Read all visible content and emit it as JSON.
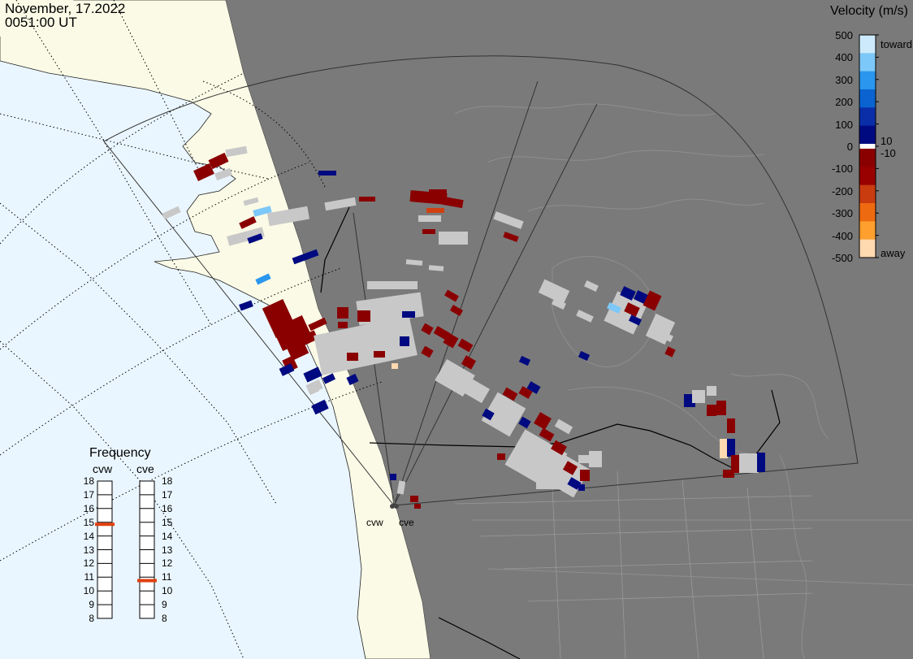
{
  "header": {
    "date": "November, 17.2022",
    "time": "0051:00 UT"
  },
  "velocity_scale": {
    "title": "Velocity (m/s)",
    "ticks": [
      "500",
      "400",
      "300",
      "200",
      "100",
      "0",
      "-100",
      "-200",
      "-300",
      "-400",
      "-500"
    ],
    "toward_label": "toward",
    "away_label": "away",
    "inner_pos_label": "10",
    "inner_neg_label": "-10",
    "colors": [
      "#ffd9b0",
      "#ff9f2e",
      "#ee6a10",
      "#c83c10",
      "#990000",
      "#8a0000",
      "#ffffff",
      "#000a80",
      "#0a2ea8",
      "#0a63d0",
      "#2a96ee",
      "#7cc8f8",
      "#cdeafc"
    ]
  },
  "frequency_panel": {
    "title": "Frequency",
    "radars": [
      {
        "name": "cvw",
        "current_mhz": 14.85
      },
      {
        "name": "cve",
        "current_mhz": 10.75
      }
    ],
    "scale_left": [
      "18",
      "17",
      "16",
      "15",
      "14",
      "13",
      "12",
      "11",
      "10",
      "9",
      "8"
    ],
    "scale_right": [
      "18",
      "17",
      "16",
      "15",
      "14",
      "13",
      "12",
      "11",
      "10",
      "9",
      "8"
    ],
    "marker_color": "#e04010"
  },
  "sites": [
    {
      "name": "cvw"
    },
    {
      "name": "cve"
    }
  ],
  "map": {
    "ocean_color": "#eaf6ff",
    "land_color": "#fafae6",
    "night_color": "#7a7a7a",
    "boundary_color": "#000000",
    "fov_color": "#333333",
    "lowvel_color": "#c8c8c8"
  }
}
